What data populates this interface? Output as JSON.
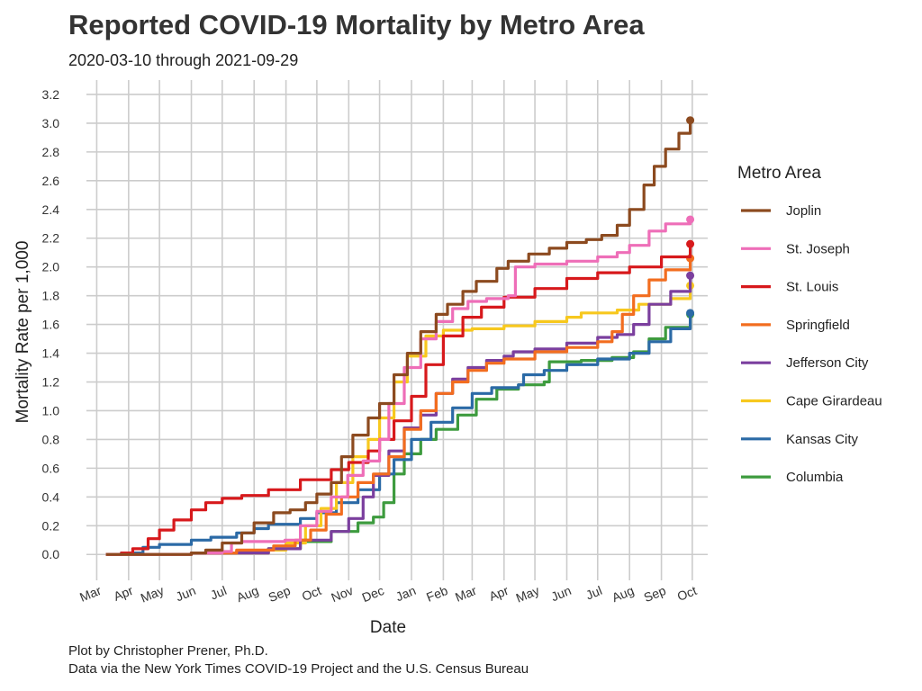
{
  "chart_data": {
    "type": "line",
    "title": "Reported COVID-19 Mortality by Metro Area",
    "subtitle": "2020-03-10 through 2021-09-29",
    "xlabel": "Date",
    "ylabel": "Mortality Rate per 1,000",
    "ylim": [
      -0.18,
      3.3
    ],
    "yticks": [
      0.0,
      0.2,
      0.4,
      0.6,
      0.8,
      1.0,
      1.2,
      1.4,
      1.6,
      1.8,
      2.0,
      2.2,
      2.4,
      2.6,
      2.8,
      3.0,
      3.2
    ],
    "xlim": [
      "2020-02-20",
      "2021-10-16"
    ],
    "xticks": [
      {
        "date": "2020-03-01",
        "label": "Mar"
      },
      {
        "date": "2020-04-01",
        "label": "Apr"
      },
      {
        "date": "2020-05-01",
        "label": "May"
      },
      {
        "date": "2020-06-01",
        "label": "Jun"
      },
      {
        "date": "2020-07-01",
        "label": "Jul"
      },
      {
        "date": "2020-08-01",
        "label": "Aug"
      },
      {
        "date": "2020-09-01",
        "label": "Sep"
      },
      {
        "date": "2020-10-01",
        "label": "Oct"
      },
      {
        "date": "2020-11-01",
        "label": "Nov"
      },
      {
        "date": "2020-12-01",
        "label": "Dec"
      },
      {
        "date": "2021-01-01",
        "label": "Jan"
      },
      {
        "date": "2021-02-01",
        "label": "Feb"
      },
      {
        "date": "2021-03-01",
        "label": "Mar"
      },
      {
        "date": "2021-04-01",
        "label": "Apr"
      },
      {
        "date": "2021-05-01",
        "label": "May"
      },
      {
        "date": "2021-06-01",
        "label": "Jun"
      },
      {
        "date": "2021-07-01",
        "label": "Jul"
      },
      {
        "date": "2021-08-01",
        "label": "Aug"
      },
      {
        "date": "2021-09-01",
        "label": "Sep"
      },
      {
        "date": "2021-10-01",
        "label": "Oct"
      }
    ],
    "grid": true,
    "legend_title": "Metro Area",
    "legend_position": "right",
    "series": [
      {
        "name": "Joplin",
        "color": "#8c4a1f",
        "points": [
          [
            "2020-03-10",
            0.0
          ],
          [
            "2020-04-15",
            0.0
          ],
          [
            "2020-06-01",
            0.01
          ],
          [
            "2020-06-15",
            0.03
          ],
          [
            "2020-07-01",
            0.08
          ],
          [
            "2020-07-20",
            0.15
          ],
          [
            "2020-08-01",
            0.22
          ],
          [
            "2020-08-20",
            0.29
          ],
          [
            "2020-09-05",
            0.31
          ],
          [
            "2020-09-20",
            0.36
          ],
          [
            "2020-10-01",
            0.42
          ],
          [
            "2020-10-15",
            0.5
          ],
          [
            "2020-10-25",
            0.68
          ],
          [
            "2020-11-05",
            0.83
          ],
          [
            "2020-11-20",
            0.95
          ],
          [
            "2020-12-01",
            1.05
          ],
          [
            "2020-12-15",
            1.25
          ],
          [
            "2020-12-28",
            1.4
          ],
          [
            "2021-01-10",
            1.55
          ],
          [
            "2021-01-25",
            1.67
          ],
          [
            "2021-02-05",
            1.74
          ],
          [
            "2021-02-20",
            1.83
          ],
          [
            "2021-03-05",
            1.9
          ],
          [
            "2021-03-25",
            1.99
          ],
          [
            "2021-04-05",
            2.04
          ],
          [
            "2021-04-25",
            2.09
          ],
          [
            "2021-05-15",
            2.13
          ],
          [
            "2021-06-01",
            2.17
          ],
          [
            "2021-06-20",
            2.19
          ],
          [
            "2021-07-05",
            2.22
          ],
          [
            "2021-07-20",
            2.29
          ],
          [
            "2021-08-01",
            2.4
          ],
          [
            "2021-08-15",
            2.57
          ],
          [
            "2021-08-25",
            2.7
          ],
          [
            "2021-09-05",
            2.82
          ],
          [
            "2021-09-18",
            2.93
          ],
          [
            "2021-09-29",
            3.02
          ]
        ]
      },
      {
        "name": "St. Joseph",
        "color": "#ee6eb8",
        "points": [
          [
            "2020-03-10",
            0.0
          ],
          [
            "2020-06-01",
            0.01
          ],
          [
            "2020-07-01",
            0.02
          ],
          [
            "2020-07-10",
            0.08
          ],
          [
            "2020-07-20",
            0.09
          ],
          [
            "2020-08-31",
            0.1
          ],
          [
            "2020-09-15",
            0.2
          ],
          [
            "2020-10-01",
            0.3
          ],
          [
            "2020-10-15",
            0.4
          ],
          [
            "2020-10-31",
            0.55
          ],
          [
            "2020-11-15",
            0.65
          ],
          [
            "2020-12-01",
            0.8
          ],
          [
            "2020-12-10",
            1.05
          ],
          [
            "2020-12-25",
            1.3
          ],
          [
            "2021-01-10",
            1.5
          ],
          [
            "2021-01-25",
            1.62
          ],
          [
            "2021-02-10",
            1.71
          ],
          [
            "2021-02-25",
            1.76
          ],
          [
            "2021-03-15",
            1.78
          ],
          [
            "2021-04-05",
            1.8
          ],
          [
            "2021-04-12",
            2.0
          ],
          [
            "2021-05-01",
            2.02
          ],
          [
            "2021-06-01",
            2.04
          ],
          [
            "2021-07-01",
            2.07
          ],
          [
            "2021-07-20",
            2.1
          ],
          [
            "2021-08-01",
            2.15
          ],
          [
            "2021-08-20",
            2.25
          ],
          [
            "2021-09-05",
            2.3
          ],
          [
            "2021-09-29",
            2.33
          ]
        ]
      },
      {
        "name": "St. Louis",
        "color": "#d7191c",
        "points": [
          [
            "2020-03-10",
            0.0
          ],
          [
            "2020-03-25",
            0.01
          ],
          [
            "2020-04-05",
            0.04
          ],
          [
            "2020-04-20",
            0.11
          ],
          [
            "2020-05-01",
            0.17
          ],
          [
            "2020-05-15",
            0.24
          ],
          [
            "2020-06-01",
            0.31
          ],
          [
            "2020-06-15",
            0.36
          ],
          [
            "2020-07-01",
            0.39
          ],
          [
            "2020-07-20",
            0.41
          ],
          [
            "2020-08-15",
            0.45
          ],
          [
            "2020-09-15",
            0.52
          ],
          [
            "2020-10-15",
            0.59
          ],
          [
            "2020-11-01",
            0.64
          ],
          [
            "2020-11-20",
            0.72
          ],
          [
            "2020-12-01",
            0.8
          ],
          [
            "2020-12-15",
            0.93
          ],
          [
            "2021-01-01",
            1.1
          ],
          [
            "2021-01-15",
            1.32
          ],
          [
            "2021-02-01",
            1.52
          ],
          [
            "2021-02-20",
            1.65
          ],
          [
            "2021-03-10",
            1.72
          ],
          [
            "2021-04-01",
            1.79
          ],
          [
            "2021-05-01",
            1.85
          ],
          [
            "2021-06-01",
            1.92
          ],
          [
            "2021-07-01",
            1.96
          ],
          [
            "2021-08-01",
            2.0
          ],
          [
            "2021-09-01",
            2.07
          ],
          [
            "2021-09-29",
            2.16
          ]
        ]
      },
      {
        "name": "Springfield",
        "color": "#f26d1f",
        "points": [
          [
            "2020-03-10",
            0.0
          ],
          [
            "2020-06-01",
            0.01
          ],
          [
            "2020-07-15",
            0.03
          ],
          [
            "2020-08-20",
            0.06
          ],
          [
            "2020-09-10",
            0.1
          ],
          [
            "2020-09-25",
            0.17
          ],
          [
            "2020-10-10",
            0.28
          ],
          [
            "2020-10-25",
            0.4
          ],
          [
            "2020-11-10",
            0.5
          ],
          [
            "2020-11-25",
            0.56
          ],
          [
            "2020-12-10",
            0.68
          ],
          [
            "2020-12-25",
            0.87
          ],
          [
            "2021-01-10",
            1.0
          ],
          [
            "2021-01-25",
            1.12
          ],
          [
            "2021-02-10",
            1.2
          ],
          [
            "2021-02-25",
            1.28
          ],
          [
            "2021-03-15",
            1.33
          ],
          [
            "2021-04-01",
            1.36
          ],
          [
            "2021-05-01",
            1.41
          ],
          [
            "2021-06-01",
            1.44
          ],
          [
            "2021-07-01",
            1.48
          ],
          [
            "2021-07-15",
            1.55
          ],
          [
            "2021-07-25",
            1.67
          ],
          [
            "2021-08-05",
            1.8
          ],
          [
            "2021-08-20",
            1.91
          ],
          [
            "2021-09-05",
            1.98
          ],
          [
            "2021-09-29",
            2.06
          ]
        ]
      },
      {
        "name": "Jefferson City",
        "color": "#7b3f9e",
        "points": [
          [
            "2020-03-10",
            0.0
          ],
          [
            "2020-06-01",
            0.01
          ],
          [
            "2020-08-15",
            0.04
          ],
          [
            "2020-09-15",
            0.1
          ],
          [
            "2020-10-15",
            0.16
          ],
          [
            "2020-11-01",
            0.25
          ],
          [
            "2020-11-15",
            0.4
          ],
          [
            "2020-11-25",
            0.55
          ],
          [
            "2020-12-10",
            0.72
          ],
          [
            "2020-12-25",
            0.88
          ],
          [
            "2021-01-10",
            0.97
          ],
          [
            "2021-01-25",
            1.12
          ],
          [
            "2021-02-10",
            1.22
          ],
          [
            "2021-02-25",
            1.3
          ],
          [
            "2021-03-15",
            1.35
          ],
          [
            "2021-04-01",
            1.38
          ],
          [
            "2021-04-10",
            1.41
          ],
          [
            "2021-05-01",
            1.43
          ],
          [
            "2021-06-01",
            1.47
          ],
          [
            "2021-07-01",
            1.51
          ],
          [
            "2021-07-20",
            1.53
          ],
          [
            "2021-08-05",
            1.6
          ],
          [
            "2021-08-20",
            1.74
          ],
          [
            "2021-09-10",
            1.83
          ],
          [
            "2021-09-29",
            1.94
          ]
        ]
      },
      {
        "name": "Cape Girardeau",
        "color": "#f7c81e",
        "points": [
          [
            "2020-03-10",
            0.0
          ],
          [
            "2020-06-01",
            0.01
          ],
          [
            "2020-08-15",
            0.03
          ],
          [
            "2020-09-01",
            0.08
          ],
          [
            "2020-09-20",
            0.2
          ],
          [
            "2020-10-05",
            0.32
          ],
          [
            "2020-10-20",
            0.5
          ],
          [
            "2020-11-05",
            0.68
          ],
          [
            "2020-11-20",
            0.8
          ],
          [
            "2020-12-01",
            0.95
          ],
          [
            "2020-12-15",
            1.2
          ],
          [
            "2020-12-28",
            1.38
          ],
          [
            "2021-01-15",
            1.52
          ],
          [
            "2021-02-01",
            1.56
          ],
          [
            "2021-03-01",
            1.57
          ],
          [
            "2021-04-01",
            1.59
          ],
          [
            "2021-05-01",
            1.62
          ],
          [
            "2021-06-01",
            1.65
          ],
          [
            "2021-06-15",
            1.68
          ],
          [
            "2021-07-20",
            1.7
          ],
          [
            "2021-08-10",
            1.74
          ],
          [
            "2021-09-10",
            1.78
          ],
          [
            "2021-09-29",
            1.87
          ]
        ]
      },
      {
        "name": "Kansas City",
        "color": "#2b6aa6",
        "points": [
          [
            "2020-03-10",
            0.0
          ],
          [
            "2020-03-25",
            0.01
          ],
          [
            "2020-04-15",
            0.05
          ],
          [
            "2020-05-01",
            0.07
          ],
          [
            "2020-06-01",
            0.1
          ],
          [
            "2020-06-20",
            0.12
          ],
          [
            "2020-07-15",
            0.15
          ],
          [
            "2020-08-01",
            0.18
          ],
          [
            "2020-08-15",
            0.21
          ],
          [
            "2020-09-15",
            0.25
          ],
          [
            "2020-10-01",
            0.29
          ],
          [
            "2020-10-20",
            0.36
          ],
          [
            "2020-11-10",
            0.45
          ],
          [
            "2020-12-01",
            0.56
          ],
          [
            "2020-12-15",
            0.66
          ],
          [
            "2021-01-01",
            0.8
          ],
          [
            "2021-01-20",
            0.92
          ],
          [
            "2021-02-10",
            1.02
          ],
          [
            "2021-03-01",
            1.12
          ],
          [
            "2021-03-20",
            1.16
          ],
          [
            "2021-04-15",
            1.18
          ],
          [
            "2021-04-20",
            1.25
          ],
          [
            "2021-05-10",
            1.28
          ],
          [
            "2021-06-01",
            1.32
          ],
          [
            "2021-07-01",
            1.36
          ],
          [
            "2021-08-01",
            1.4
          ],
          [
            "2021-08-20",
            1.48
          ],
          [
            "2021-09-10",
            1.57
          ],
          [
            "2021-09-29",
            1.68
          ]
        ]
      },
      {
        "name": "Columbia",
        "color": "#3d9b3e",
        "points": [
          [
            "2020-03-10",
            0.0
          ],
          [
            "2020-06-01",
            0.01
          ],
          [
            "2020-07-15",
            0.02
          ],
          [
            "2020-08-15",
            0.04
          ],
          [
            "2020-09-15",
            0.09
          ],
          [
            "2020-10-15",
            0.16
          ],
          [
            "2020-11-10",
            0.22
          ],
          [
            "2020-11-25",
            0.26
          ],
          [
            "2020-12-05",
            0.36
          ],
          [
            "2020-12-15",
            0.56
          ],
          [
            "2020-12-25",
            0.7
          ],
          [
            "2021-01-10",
            0.8
          ],
          [
            "2021-01-25",
            0.87
          ],
          [
            "2021-02-15",
            0.97
          ],
          [
            "2021-03-05",
            1.08
          ],
          [
            "2021-03-25",
            1.15
          ],
          [
            "2021-04-15",
            1.18
          ],
          [
            "2021-05-10",
            1.2
          ],
          [
            "2021-05-15",
            1.34
          ],
          [
            "2021-06-15",
            1.35
          ],
          [
            "2021-07-15",
            1.37
          ],
          [
            "2021-08-05",
            1.41
          ],
          [
            "2021-08-20",
            1.5
          ],
          [
            "2021-09-05",
            1.58
          ],
          [
            "2021-09-29",
            1.67
          ]
        ]
      }
    ]
  },
  "caption": {
    "line1": "Plot by Christopher Prener, Ph.D.",
    "line2": "Data via the New York Times COVID-19 Project and the U.S. Census Bureau"
  }
}
